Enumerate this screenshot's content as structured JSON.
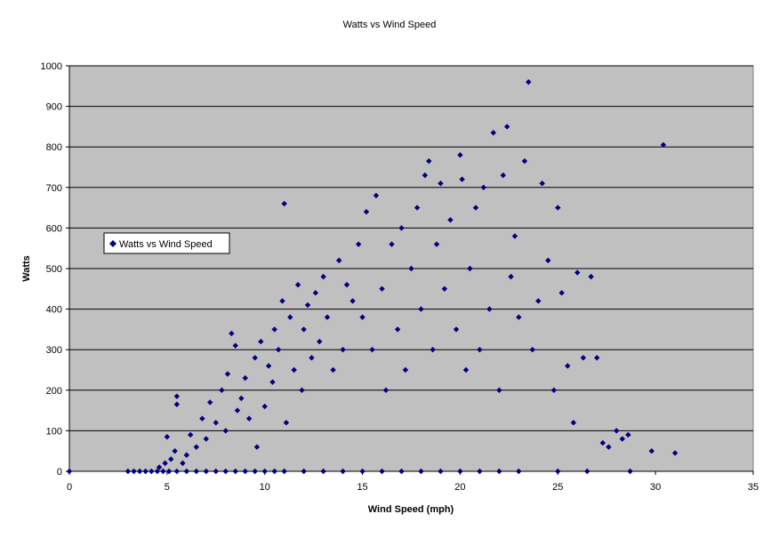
{
  "chart_data": {
    "type": "scatter",
    "title": "Watts vs Wind Speed",
    "xlabel": "Wind Speed (mph)",
    "ylabel": "Watts",
    "xlim": [
      0,
      35
    ],
    "ylim": [
      0,
      1000
    ],
    "xticks": [
      "0",
      "5",
      "10",
      "15",
      "20",
      "25",
      "30",
      "35"
    ],
    "yticks": [
      "0",
      "100",
      "200",
      "300",
      "400",
      "500",
      "600",
      "700",
      "800",
      "900",
      "1000"
    ],
    "grid": "horizontal",
    "legend_position": "left",
    "plot_background": "#c0c0c0",
    "series": [
      {
        "name": "Watts vs Wind Speed",
        "color": "#000080",
        "marker": "diamond",
        "points": [
          [
            0,
            0
          ],
          [
            3.0,
            0
          ],
          [
            3.3,
            0
          ],
          [
            3.6,
            0
          ],
          [
            3.9,
            0
          ],
          [
            4.2,
            0
          ],
          [
            4.5,
            0
          ],
          [
            4.8,
            0
          ],
          [
            5.1,
            0
          ],
          [
            5.5,
            0
          ],
          [
            6.0,
            0
          ],
          [
            6.5,
            0
          ],
          [
            7.0,
            0
          ],
          [
            7.5,
            0
          ],
          [
            8.0,
            0
          ],
          [
            8.5,
            0
          ],
          [
            9.0,
            0
          ],
          [
            9.5,
            0
          ],
          [
            10.0,
            0
          ],
          [
            10.5,
            0
          ],
          [
            11.0,
            0
          ],
          [
            12.0,
            0
          ],
          [
            13.0,
            0
          ],
          [
            14.0,
            0
          ],
          [
            15.0,
            0
          ],
          [
            16.0,
            0
          ],
          [
            17.0,
            0
          ],
          [
            18.0,
            0
          ],
          [
            19.0,
            0
          ],
          [
            20.0,
            0
          ],
          [
            21.0,
            0
          ],
          [
            22.0,
            0
          ],
          [
            23.0,
            0
          ],
          [
            25.0,
            0
          ],
          [
            26.5,
            0
          ],
          [
            28.7,
            0
          ],
          [
            4.6,
            10
          ],
          [
            4.9,
            20
          ],
          [
            5.0,
            85
          ],
          [
            5.2,
            30
          ],
          [
            5.4,
            50
          ],
          [
            5.5,
            185
          ],
          [
            5.5,
            165
          ],
          [
            5.8,
            20
          ],
          [
            6.0,
            40
          ],
          [
            6.2,
            90
          ],
          [
            6.5,
            60
          ],
          [
            6.8,
            130
          ],
          [
            7.0,
            80
          ],
          [
            7.2,
            170
          ],
          [
            7.5,
            120
          ],
          [
            7.8,
            200
          ],
          [
            8.0,
            100
          ],
          [
            8.1,
            240
          ],
          [
            8.3,
            340
          ],
          [
            8.5,
            310
          ],
          [
            8.6,
            150
          ],
          [
            8.8,
            180
          ],
          [
            9.0,
            230
          ],
          [
            9.2,
            130
          ],
          [
            9.5,
            280
          ],
          [
            9.6,
            60
          ],
          [
            9.8,
            320
          ],
          [
            10.0,
            160
          ],
          [
            10.2,
            260
          ],
          [
            10.4,
            220
          ],
          [
            10.5,
            350
          ],
          [
            10.7,
            300
          ],
          [
            10.9,
            420
          ],
          [
            11.0,
            660
          ],
          [
            11.1,
            120
          ],
          [
            11.3,
            380
          ],
          [
            11.5,
            250
          ],
          [
            11.7,
            460
          ],
          [
            11.9,
            200
          ],
          [
            12.0,
            350
          ],
          [
            12.2,
            410
          ],
          [
            12.4,
            280
          ],
          [
            12.6,
            440
          ],
          [
            12.8,
            320
          ],
          [
            13.0,
            480
          ],
          [
            13.2,
            380
          ],
          [
            13.5,
            250
          ],
          [
            13.8,
            520
          ],
          [
            14.0,
            300
          ],
          [
            14.2,
            460
          ],
          [
            14.5,
            420
          ],
          [
            14.8,
            560
          ],
          [
            15.0,
            380
          ],
          [
            15.2,
            640
          ],
          [
            15.5,
            300
          ],
          [
            15.7,
            680
          ],
          [
            16.0,
            450
          ],
          [
            16.2,
            200
          ],
          [
            16.5,
            560
          ],
          [
            16.8,
            350
          ],
          [
            17.0,
            600
          ],
          [
            17.2,
            250
          ],
          [
            17.5,
            500
          ],
          [
            17.8,
            650
          ],
          [
            18.0,
            400
          ],
          [
            18.2,
            730
          ],
          [
            18.4,
            765
          ],
          [
            18.6,
            300
          ],
          [
            18.8,
            560
          ],
          [
            19.0,
            710
          ],
          [
            19.2,
            450
          ],
          [
            19.5,
            620
          ],
          [
            19.8,
            350
          ],
          [
            20.0,
            780
          ],
          [
            20.1,
            720
          ],
          [
            20.3,
            250
          ],
          [
            20.5,
            500
          ],
          [
            20.8,
            650
          ],
          [
            21.0,
            300
          ],
          [
            21.2,
            700
          ],
          [
            21.5,
            400
          ],
          [
            21.7,
            835
          ],
          [
            22.0,
            200
          ],
          [
            22.2,
            730
          ],
          [
            22.4,
            850
          ],
          [
            22.6,
            480
          ],
          [
            22.8,
            580
          ],
          [
            23.0,
            380
          ],
          [
            23.3,
            765
          ],
          [
            23.5,
            960
          ],
          [
            23.7,
            300
          ],
          [
            24.0,
            420
          ],
          [
            24.2,
            710
          ],
          [
            24.5,
            520
          ],
          [
            24.8,
            200
          ],
          [
            25.0,
            650
          ],
          [
            25.2,
            440
          ],
          [
            25.5,
            260
          ],
          [
            25.8,
            120
          ],
          [
            26.0,
            490
          ],
          [
            26.3,
            280
          ],
          [
            26.7,
            480
          ],
          [
            27.0,
            280
          ],
          [
            27.3,
            70
          ],
          [
            27.6,
            60
          ],
          [
            28.0,
            100
          ],
          [
            28.3,
            80
          ],
          [
            28.6,
            90
          ],
          [
            29.8,
            50
          ],
          [
            30.4,
            805
          ],
          [
            31.0,
            45
          ]
        ]
      }
    ]
  }
}
